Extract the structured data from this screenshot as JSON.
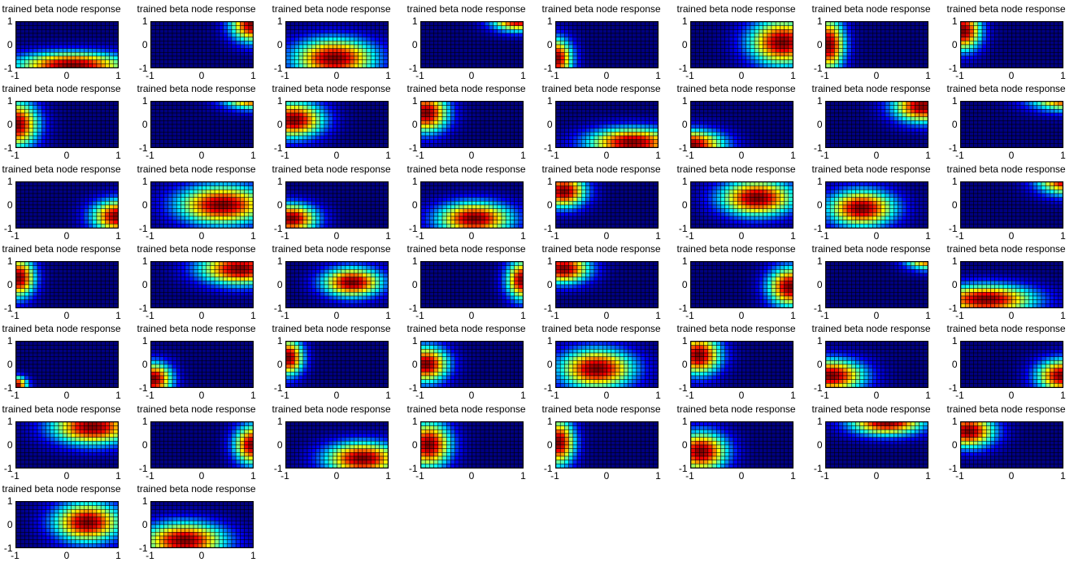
{
  "chart_data": {
    "type": "heatmap",
    "panel_title": "trained beta node response",
    "xticks": [
      "-1",
      "0",
      "1"
    ],
    "yticks": [
      "1",
      "0",
      "-1"
    ],
    "xlim": [
      -1,
      1
    ],
    "ylim": [
      -1,
      1
    ],
    "colormap": "jet",
    "grid_resolution": [
      24,
      12
    ],
    "panels": [
      {
        "cx": 0.1,
        "cy": -0.9,
        "sx": 0.75,
        "sy": 0.4
      },
      {
        "cx": 1.0,
        "cy": 0.9,
        "sx": 0.3,
        "sy": 0.55
      },
      {
        "cx": -0.05,
        "cy": -0.6,
        "sx": 0.55,
        "sy": 0.6
      },
      {
        "cx": 0.9,
        "cy": 1.1,
        "sx": 0.35,
        "sy": 0.35
      },
      {
        "cx": -1.0,
        "cy": -0.6,
        "sx": 0.22,
        "sy": 0.6
      },
      {
        "cx": 0.8,
        "cy": 0.1,
        "sx": 0.45,
        "sy": 0.7
      },
      {
        "cx": -0.95,
        "cy": 0.0,
        "sx": 0.22,
        "sy": 0.8
      },
      {
        "cx": -0.95,
        "cy": 0.6,
        "sx": 0.24,
        "sy": 0.6
      },
      {
        "cx": -1.0,
        "cy": 0.0,
        "sx": 0.3,
        "sy": 0.7
      },
      {
        "cx": 1.0,
        "cy": 1.2,
        "sx": 0.4,
        "sy": 0.35
      },
      {
        "cx": -0.85,
        "cy": 0.2,
        "sx": 0.4,
        "sy": 0.55
      },
      {
        "cx": -0.9,
        "cy": 0.5,
        "sx": 0.3,
        "sy": 0.6
      },
      {
        "cx": 0.5,
        "cy": -0.8,
        "sx": 0.6,
        "sy": 0.45
      },
      {
        "cx": -1.0,
        "cy": -0.9,
        "sx": 0.45,
        "sy": 0.45
      },
      {
        "cx": 0.9,
        "cy": 0.8,
        "sx": 0.4,
        "sy": 0.5
      },
      {
        "cx": 1.1,
        "cy": 1.2,
        "sx": 0.5,
        "sy": 0.4
      },
      {
        "cx": 1.0,
        "cy": -0.5,
        "sx": 0.35,
        "sy": 0.5
      },
      {
        "cx": 0.4,
        "cy": 0.0,
        "sx": 0.6,
        "sy": 0.6
      },
      {
        "cx": -0.9,
        "cy": -0.6,
        "sx": 0.35,
        "sy": 0.45
      },
      {
        "cx": 0.05,
        "cy": -0.6,
        "sx": 0.5,
        "sy": 0.5
      },
      {
        "cx": -0.85,
        "cy": 0.6,
        "sx": 0.3,
        "sy": 0.5
      },
      {
        "cx": 0.3,
        "cy": 0.3,
        "sx": 0.5,
        "sy": 0.55
      },
      {
        "cx": -0.3,
        "cy": -0.15,
        "sx": 0.45,
        "sy": 0.55
      },
      {
        "cx": 1.1,
        "cy": 1.1,
        "sx": 0.4,
        "sy": 0.45
      },
      {
        "cx": -0.95,
        "cy": 0.3,
        "sx": 0.22,
        "sy": 0.6
      },
      {
        "cx": 0.75,
        "cy": 0.7,
        "sx": 0.55,
        "sy": 0.5
      },
      {
        "cx": 0.3,
        "cy": 0.1,
        "sx": 0.4,
        "sy": 0.45
      },
      {
        "cx": 1.0,
        "cy": 0.2,
        "sx": 0.22,
        "sy": 0.6
      },
      {
        "cx": -0.85,
        "cy": 0.7,
        "sx": 0.35,
        "sy": 0.45
      },
      {
        "cx": 0.95,
        "cy": -0.1,
        "sx": 0.3,
        "sy": 0.6
      },
      {
        "cx": 1.0,
        "cy": 1.2,
        "sx": 0.3,
        "sy": 0.35
      },
      {
        "cx": -0.5,
        "cy": -0.65,
        "sx": 0.65,
        "sy": 0.45
      },
      {
        "cx": -1.0,
        "cy": -0.9,
        "sx": 0.15,
        "sy": 0.25
      },
      {
        "cx": -0.95,
        "cy": -0.65,
        "sx": 0.25,
        "sy": 0.5
      },
      {
        "cx": -0.95,
        "cy": 0.3,
        "sx": 0.2,
        "sy": 0.55
      },
      {
        "cx": -0.9,
        "cy": 0.0,
        "sx": 0.3,
        "sy": 0.55
      },
      {
        "cx": -0.2,
        "cy": -0.2,
        "sx": 0.5,
        "sy": 0.6
      },
      {
        "cx": -0.85,
        "cy": 0.4,
        "sx": 0.3,
        "sy": 0.6
      },
      {
        "cx": -0.9,
        "cy": -0.5,
        "sx": 0.45,
        "sy": 0.5
      },
      {
        "cx": 1.0,
        "cy": -0.5,
        "sx": 0.35,
        "sy": 0.5
      },
      {
        "cx": 0.5,
        "cy": 0.8,
        "sx": 0.55,
        "sy": 0.55
      },
      {
        "cx": 1.0,
        "cy": 0.0,
        "sx": 0.25,
        "sy": 0.6
      },
      {
        "cx": 0.5,
        "cy": -0.6,
        "sx": 0.5,
        "sy": 0.5
      },
      {
        "cx": -0.85,
        "cy": 0.0,
        "sx": 0.3,
        "sy": 0.7
      },
      {
        "cx": -0.95,
        "cy": 0.1,
        "sx": 0.22,
        "sy": 0.7
      },
      {
        "cx": -0.8,
        "cy": -0.3,
        "sx": 0.35,
        "sy": 0.6
      },
      {
        "cx": 0.2,
        "cy": 1.0,
        "sx": 0.5,
        "sy": 0.4
      },
      {
        "cx": -0.85,
        "cy": 0.6,
        "sx": 0.35,
        "sy": 0.5
      },
      {
        "cx": 0.4,
        "cy": 0.1,
        "sx": 0.45,
        "sy": 0.6
      },
      {
        "cx": -0.35,
        "cy": -0.7,
        "sx": 0.55,
        "sy": 0.55
      }
    ]
  }
}
